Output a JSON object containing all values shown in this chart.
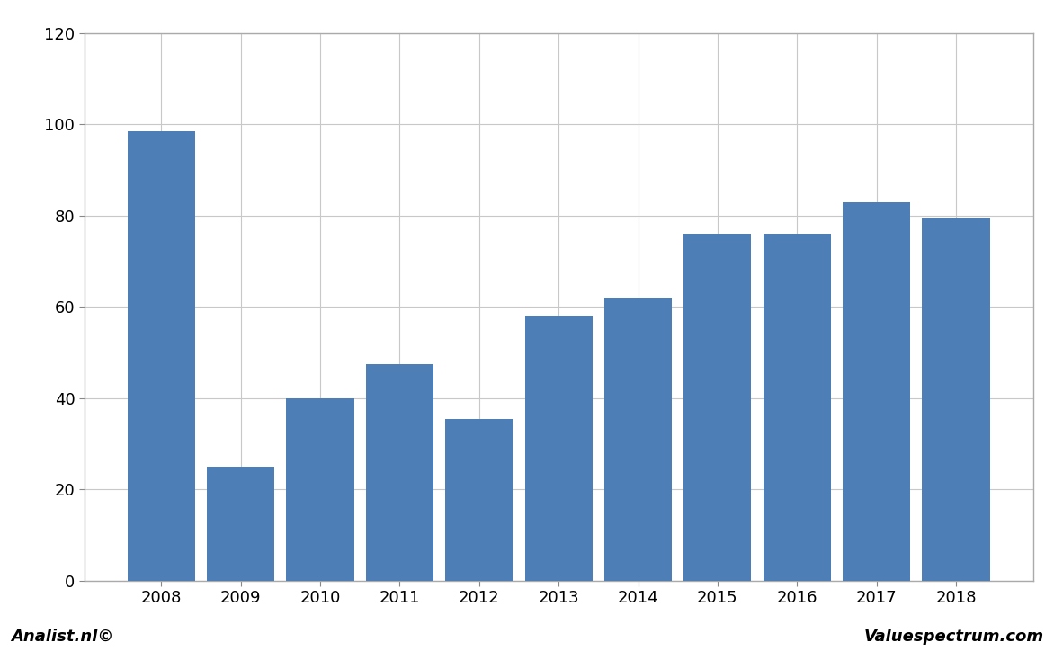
{
  "categories": [
    "2008",
    "2009",
    "2010",
    "2011",
    "2012",
    "2013",
    "2014",
    "2015",
    "2016",
    "2017",
    "2018"
  ],
  "values": [
    98.5,
    25.0,
    40.0,
    47.5,
    35.5,
    58.0,
    62.0,
    76.0,
    76.0,
    83.0,
    79.5
  ],
  "bar_color": "#4d7eb5",
  "ylim": [
    0,
    120
  ],
  "yticks": [
    0,
    20,
    40,
    60,
    80,
    100,
    120
  ],
  "background_color": "#ffffff",
  "plot_bg_color": "#ffffff",
  "grid_color": "#c8c8c8",
  "footer_left": "Analist.nl©",
  "footer_right": "Valuespectrum.com",
  "bar_width": 0.85,
  "outer_border_color": "#aaaaaa",
  "footer_bg_color": "#d4d4d4",
  "tick_color": "#888888"
}
